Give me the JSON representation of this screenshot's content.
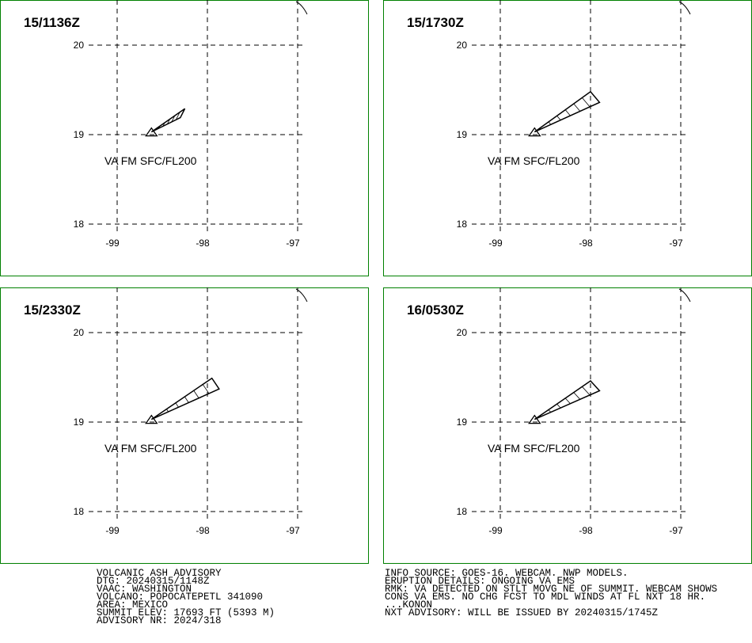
{
  "panels": [
    {
      "time": "15/1136Z",
      "label": "VA FM SFC/FL200",
      "lat_ticks": [
        20,
        19,
        18
      ],
      "lon_ticks": [
        -99,
        -98,
        -97
      ],
      "ash_polygon": [
        [
          -98.62,
          19.03
        ],
        [
          -98.25,
          19.29
        ],
        [
          -98.3,
          19.19
        ]
      ]
    },
    {
      "time": "15/1730Z",
      "label": "VA FM SFC/FL200",
      "lat_ticks": [
        20,
        19,
        18
      ],
      "lon_ticks": [
        -99,
        -98,
        -97
      ],
      "ash_polygon": [
        [
          -98.62,
          19.03
        ],
        [
          -98.0,
          19.48
        ],
        [
          -97.9,
          19.36
        ]
      ]
    },
    {
      "time": "15/2330Z",
      "label": "VA FM SFC/FL200",
      "lat_ticks": [
        20,
        19,
        18
      ],
      "lon_ticks": [
        -99,
        -98,
        -97
      ],
      "ash_polygon": [
        [
          -98.62,
          19.03
        ],
        [
          -97.95,
          19.49
        ],
        [
          -97.87,
          19.37
        ]
      ]
    },
    {
      "time": "16/0530Z",
      "label": "VA FM SFC/FL200",
      "lat_ticks": [
        20,
        19,
        18
      ],
      "lon_ticks": [
        -99,
        -98,
        -97
      ],
      "ash_polygon": [
        [
          -98.62,
          19.03
        ],
        [
          -98.0,
          19.46
        ],
        [
          -97.9,
          19.35
        ]
      ]
    }
  ],
  "footer": {
    "left": [
      "VOLCANIC ASH ADVISORY",
      "DTG: 20240315/1148Z",
      "VAAC: WASHINGTON",
      "VOLCANO: POPOCATEPETL 341090",
      "AREA: MEXICO",
      "SUMMIT ELEV: 17693 FT (5393 M)",
      "ADVISORY NR: 2024/318"
    ],
    "right": [
      "INFO SOURCE: GOES-16. WEBCAM. NWP MODELS.",
      "ERUPTION DETAILS: ONGOING VA EMS",
      "RMK: VA DETECTED ON STLT MOVG NE OF SUMMIT. WEBCAM SHOWS",
      "CONS VA EMS. NO CHG FCST TO MDL WINDS AT FL NXT 18 HR.",
      "...KONON",
      "NXT ADVISORY: WILL BE ISSUED BY 20240315/1745Z"
    ]
  }
}
